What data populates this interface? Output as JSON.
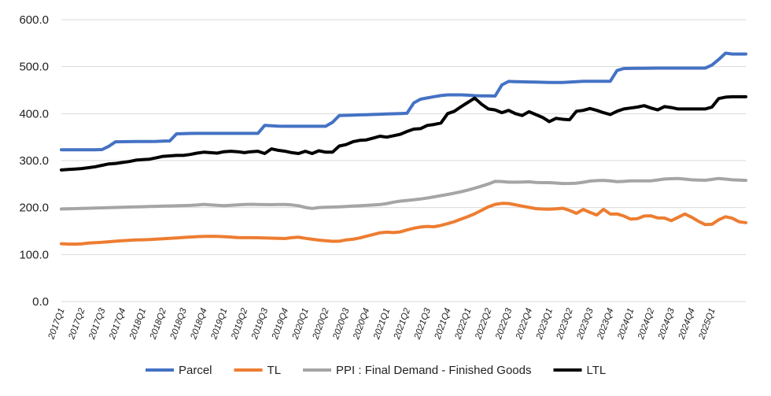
{
  "chart_data": {
    "type": "line",
    "title": "",
    "xlabel": "",
    "ylabel": "",
    "ylim": [
      0,
      600
    ],
    "yticks": [
      "0.0",
      "100.0",
      "200.0",
      "300.0",
      "400.0",
      "500.0",
      "600.0"
    ],
    "grid": "horizontal",
    "legend_position": "bottom",
    "x_tick_labels": [
      "2017Q1",
      "2017Q2",
      "2017Q3",
      "2017Q4",
      "2018Q1",
      "2018Q2",
      "2018Q3",
      "2018Q4",
      "2019Q1",
      "2019Q2",
      "2019Q3",
      "2019Q4",
      "2020Q1",
      "2020Q2",
      "2020Q3",
      "2020Q4",
      "2021Q1",
      "2021Q2",
      "2021Q3",
      "2021Q4",
      "2022Q1",
      "2022Q2",
      "2022Q3",
      "2022Q4",
      "2023Q1",
      "2023Q2",
      "2023Q3",
      "2023Q4",
      "2024Q1",
      "2024Q2",
      "2024Q3",
      "2024Q4",
      "2025Q1"
    ],
    "x_tick_every": 3,
    "point_count": 102,
    "series": [
      {
        "name": "Parcel",
        "color": "#4472C4",
        "keypoints": [
          [
            0,
            323
          ],
          [
            9,
            323
          ],
          [
            10,
            325
          ],
          [
            12,
            340
          ],
          [
            22,
            341
          ],
          [
            25,
            342
          ],
          [
            26,
            357
          ],
          [
            30,
            358
          ],
          [
            45,
            358
          ],
          [
            46,
            375
          ],
          [
            50,
            373
          ],
          [
            61,
            373
          ],
          [
            62,
            395
          ],
          [
            63,
            396
          ],
          [
            70,
            398
          ],
          [
            79,
            401
          ],
          [
            80,
            428
          ],
          [
            82,
            432
          ],
          [
            85,
            437
          ],
          [
            87,
            440
          ],
          [
            91,
            440
          ],
          [
            94,
            438
          ],
          [
            97,
            438
          ],
          [
            99,
            437
          ],
          [
            100,
            469
          ],
          [
            103,
            468
          ],
          [
            113,
            466
          ],
          [
            118,
            469
          ],
          [
            125,
            469
          ],
          [
            126,
            496
          ],
          [
            135,
            497
          ],
          [
            140,
            497
          ],
          [
            146,
            497
          ],
          [
            147,
            500
          ],
          [
            148,
            510
          ],
          [
            149,
            516
          ],
          [
            150,
            530
          ],
          [
            151,
            527
          ],
          [
            155,
            527
          ]
        ]
      },
      {
        "name": "TL",
        "color": "#ED7D31",
        "keypoints": [
          [
            0,
            123
          ],
          [
            3,
            122
          ],
          [
            6,
            123
          ],
          [
            8,
            125
          ],
          [
            11,
            126
          ],
          [
            14,
            128
          ],
          [
            17,
            130
          ],
          [
            20,
            131
          ],
          [
            24,
            132
          ],
          [
            30,
            135
          ],
          [
            36,
            138
          ],
          [
            40,
            139
          ],
          [
            44,
            138
          ],
          [
            48,
            136
          ],
          [
            52,
            136
          ],
          [
            56,
            135
          ],
          [
            60,
            134
          ],
          [
            62,
            136
          ],
          [
            64,
            137
          ],
          [
            66,
            134
          ],
          [
            68,
            132
          ],
          [
            70,
            130
          ],
          [
            72,
            129
          ],
          [
            74,
            127
          ],
          [
            76,
            131
          ],
          [
            78,
            132
          ],
          [
            80,
            135
          ],
          [
            82,
            139
          ],
          [
            84,
            143
          ],
          [
            86,
            147
          ],
          [
            88,
            148
          ],
          [
            90,
            146
          ],
          [
            92,
            150
          ],
          [
            94,
            155
          ],
          [
            96,
            158
          ],
          [
            98,
            160
          ],
          [
            100,
            159
          ],
          [
            102,
            162
          ],
          [
            104,
            166
          ],
          [
            106,
            171
          ],
          [
            108,
            177
          ],
          [
            110,
            183
          ],
          [
            112,
            190
          ],
          [
            114,
            199
          ],
          [
            116,
            206
          ],
          [
            118,
            209
          ],
          [
            120,
            209
          ],
          [
            122,
            206
          ],
          [
            124,
            203
          ],
          [
            126,
            200
          ],
          [
            128,
            197
          ],
          [
            130,
            197
          ],
          [
            132,
            196
          ],
          [
            134,
            199
          ],
          [
            136,
            198
          ],
          [
            138,
            185
          ],
          [
            140,
            197
          ],
          [
            142,
            190
          ],
          [
            144,
            184
          ],
          [
            146,
            198
          ],
          [
            148,
            183
          ],
          [
            150,
            188
          ],
          [
            152,
            178
          ],
          [
            154,
            173
          ],
          [
            156,
            181
          ],
          [
            158,
            184
          ],
          [
            160,
            178
          ],
          [
            162,
            178
          ],
          [
            164,
            172
          ],
          [
            166,
            180
          ],
          [
            168,
            188
          ],
          [
            170,
            176
          ],
          [
            172,
            168
          ],
          [
            174,
            160
          ],
          [
            176,
            170
          ],
          [
            178,
            181
          ],
          [
            180,
            179
          ],
          [
            182,
            170
          ],
          [
            184,
            168
          ]
        ]
      },
      {
        "name": "PPI : Final Demand - Finished Goods",
        "color": "#A5A5A5",
        "keypoints": [
          [
            0,
            197
          ],
          [
            10,
            199
          ],
          [
            20,
            201
          ],
          [
            30,
            203
          ],
          [
            40,
            205
          ],
          [
            42,
            207
          ],
          [
            48,
            204
          ],
          [
            56,
            207
          ],
          [
            62,
            206
          ],
          [
            66,
            207
          ],
          [
            70,
            205
          ],
          [
            72,
            202
          ],
          [
            74,
            197
          ],
          [
            76,
            200
          ],
          [
            84,
            202
          ],
          [
            92,
            205
          ],
          [
            96,
            207
          ],
          [
            100,
            213
          ],
          [
            104,
            216
          ],
          [
            108,
            219
          ],
          [
            112,
            224
          ],
          [
            116,
            229
          ],
          [
            118,
            232
          ],
          [
            120,
            235
          ],
          [
            124,
            243
          ],
          [
            128,
            252
          ],
          [
            130,
            258
          ],
          [
            132,
            254
          ],
          [
            136,
            254
          ],
          [
            140,
            255
          ],
          [
            142,
            253
          ],
          [
            146,
            253
          ],
          [
            150,
            251
          ],
          [
            154,
            252
          ],
          [
            158,
            257
          ],
          [
            162,
            258
          ],
          [
            166,
            255
          ],
          [
            170,
            257
          ],
          [
            176,
            257
          ],
          [
            180,
            261
          ],
          [
            184,
            262
          ],
          [
            188,
            259
          ],
          [
            192,
            258
          ],
          [
            196,
            262
          ],
          [
            200,
            259
          ],
          [
            204,
            258
          ]
        ]
      },
      {
        "name": "LTL",
        "color": "#000000",
        "keypoints": [
          [
            0,
            280
          ],
          [
            1,
            281
          ],
          [
            2,
            282
          ],
          [
            3,
            283
          ],
          [
            4,
            285
          ],
          [
            5,
            287
          ],
          [
            6,
            290
          ],
          [
            7,
            293
          ],
          [
            8,
            294
          ],
          [
            9,
            296
          ],
          [
            10,
            298
          ],
          [
            11,
            301
          ],
          [
            12,
            302
          ],
          [
            13,
            303
          ],
          [
            14,
            306
          ],
          [
            15,
            309
          ],
          [
            16,
            310
          ],
          [
            17,
            311
          ],
          [
            18,
            311
          ],
          [
            19,
            313
          ],
          [
            20,
            316
          ],
          [
            21,
            318
          ],
          [
            22,
            317
          ],
          [
            23,
            316
          ],
          [
            24,
            319
          ],
          [
            25,
            320
          ],
          [
            26,
            319
          ],
          [
            27,
            317
          ],
          [
            28,
            319
          ],
          [
            29,
            320
          ],
          [
            30,
            315
          ],
          [
            31,
            325
          ],
          [
            32,
            322
          ],
          [
            33,
            320
          ],
          [
            34,
            317
          ],
          [
            35,
            315
          ],
          [
            36,
            320
          ],
          [
            37,
            315
          ],
          [
            38,
            321
          ],
          [
            39,
            318
          ],
          [
            40,
            318
          ],
          [
            41,
            331
          ],
          [
            42,
            334
          ],
          [
            43,
            340
          ],
          [
            44,
            343
          ],
          [
            45,
            344
          ],
          [
            46,
            348
          ],
          [
            47,
            352
          ],
          [
            48,
            350
          ],
          [
            49,
            353
          ],
          [
            50,
            356
          ],
          [
            51,
            362
          ],
          [
            52,
            367
          ],
          [
            53,
            368
          ],
          [
            54,
            375
          ],
          [
            55,
            377
          ],
          [
            56,
            380
          ],
          [
            57,
            400
          ],
          [
            58,
            405
          ],
          [
            59,
            415
          ],
          [
            60,
            424
          ],
          [
            61,
            433
          ],
          [
            62,
            420
          ],
          [
            63,
            410
          ],
          [
            64,
            408
          ],
          [
            65,
            402
          ],
          [
            66,
            407
          ],
          [
            67,
            400
          ],
          [
            68,
            396
          ],
          [
            69,
            404
          ],
          [
            70,
            398
          ],
          [
            71,
            392
          ],
          [
            72,
            383
          ],
          [
            73,
            390
          ],
          [
            74,
            388
          ],
          [
            75,
            387
          ],
          [
            76,
            405
          ],
          [
            77,
            407
          ],
          [
            78,
            411
          ],
          [
            79,
            407
          ],
          [
            80,
            402
          ],
          [
            81,
            398
          ],
          [
            82,
            405
          ],
          [
            83,
            410
          ],
          [
            84,
            412
          ],
          [
            85,
            414
          ],
          [
            86,
            417
          ],
          [
            87,
            412
          ],
          [
            88,
            408
          ],
          [
            89,
            415
          ],
          [
            90,
            413
          ],
          [
            91,
            410
          ],
          [
            92,
            410
          ],
          [
            93,
            410
          ],
          [
            94,
            410
          ],
          [
            95,
            410
          ],
          [
            96,
            414
          ],
          [
            97,
            432
          ],
          [
            98,
            435
          ],
          [
            99,
            436
          ],
          [
            100,
            436
          ],
          [
            101,
            436
          ]
        ]
      }
    ]
  }
}
